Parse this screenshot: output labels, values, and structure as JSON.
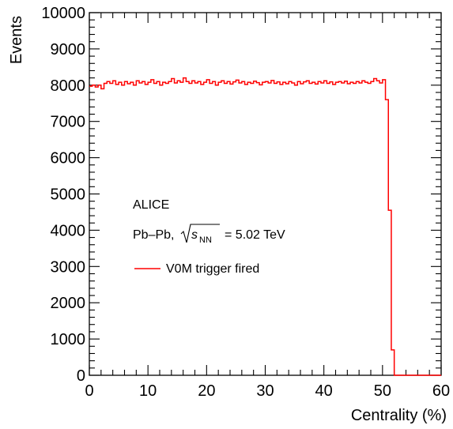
{
  "chart_data": {
    "type": "histogram",
    "title": "",
    "xlabel": "Centrality (%)",
    "ylabel": "Events",
    "xlim": [
      0,
      60
    ],
    "ylim": [
      0,
      10000
    ],
    "x_ticks": [
      0,
      10,
      20,
      30,
      40,
      50,
      60
    ],
    "x_tick_labels": [
      "0",
      "10",
      "20",
      "30",
      "40",
      "50",
      "60"
    ],
    "y_ticks": [
      0,
      1000,
      2000,
      3000,
      4000,
      5000,
      6000,
      7000,
      8000,
      9000,
      10000
    ],
    "y_tick_labels": [
      "0",
      "1000",
      "2000",
      "3000",
      "4000",
      "5000",
      "6000",
      "7000",
      "8000",
      "9000",
      "10000"
    ],
    "grid": false,
    "legend_position": "middle-left",
    "series": [
      {
        "name": "V0M trigger fired",
        "color": "#ff0000",
        "bin_width": 0.5,
        "bin_start": 0,
        "values": [
          7970,
          8000,
          7950,
          8000,
          7900,
          8050,
          8100,
          8050,
          8120,
          8020,
          8080,
          8000,
          8100,
          8040,
          8080,
          8000,
          8120,
          8060,
          8100,
          8020,
          8080,
          8150,
          8050,
          8100,
          8000,
          8080,
          8050,
          8100,
          8180,
          8060,
          8120,
          8080,
          8200,
          8100,
          8050,
          8120,
          8060,
          8100,
          8020,
          8080,
          8150,
          8050,
          8100,
          8000,
          8080,
          8120,
          8050,
          8100,
          8030,
          8090,
          8140,
          8060,
          8100,
          8020,
          8080,
          8050,
          8110,
          8070,
          8010,
          8080,
          8100,
          8060,
          8130,
          8050,
          8090,
          8020,
          8080,
          8040,
          8100,
          8060,
          8000,
          8100,
          8040,
          8090,
          8120,
          8050,
          8080,
          8030,
          8100,
          8060,
          8120,
          8050,
          8090,
          8020,
          8080,
          8100,
          8060,
          8110,
          8040,
          8080,
          8050,
          8100,
          8060,
          8120,
          8080,
          8050,
          8100,
          8180,
          8120,
          8060,
          8150,
          7600,
          4550,
          700,
          0,
          0,
          0,
          0,
          0,
          0,
          0,
          0,
          0,
          0,
          0,
          0,
          0,
          0,
          0,
          0
        ]
      }
    ],
    "annotations": {
      "experiment": "ALICE",
      "system": "Pb–Pb,",
      "energy_var": "s",
      "energy_sub": "NN",
      "energy_value": "= 5.02 TeV"
    }
  }
}
